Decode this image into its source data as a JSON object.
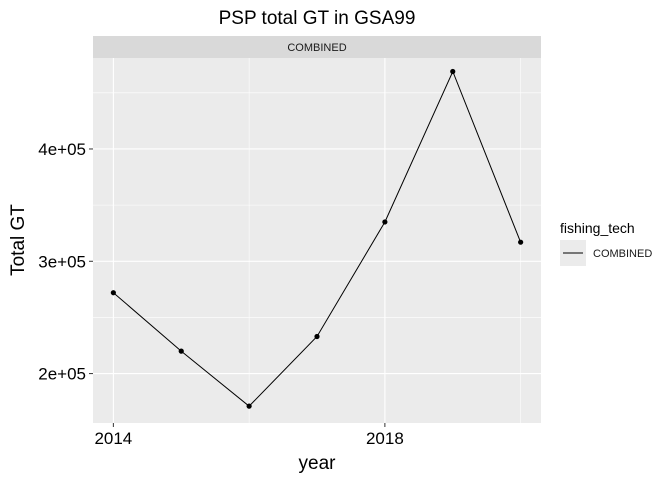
{
  "chart_data": {
    "type": "line",
    "title": "PSP total GT in GSA99",
    "facet_label": "COMBINED",
    "xlabel": "year",
    "ylabel": "Total GT",
    "x": [
      2014,
      2015,
      2016,
      2017,
      2018,
      2019,
      2020
    ],
    "series": [
      {
        "name": "COMBINED",
        "values": [
          272000,
          220000,
          171000,
          233000,
          335000,
          469000,
          317000
        ]
      }
    ],
    "xlim": [
      2013.7,
      2020.3
    ],
    "ylim": [
      156000,
      481000
    ],
    "x_ticks": [
      2014,
      2018
    ],
    "x_tick_labels": [
      "2014",
      "2018"
    ],
    "y_ticks": [
      200000,
      300000,
      400000
    ],
    "y_tick_labels": [
      "2e+05",
      "3e+05",
      "4e+05"
    ],
    "legend": {
      "title": "fishing_tech",
      "entries": [
        "COMBINED"
      ],
      "position": "right"
    },
    "grid": true,
    "colors": {
      "panel_bg": "#ebebeb",
      "strip_bg": "#d9d9d9",
      "grid": "#ffffff",
      "line": "#000000"
    }
  }
}
